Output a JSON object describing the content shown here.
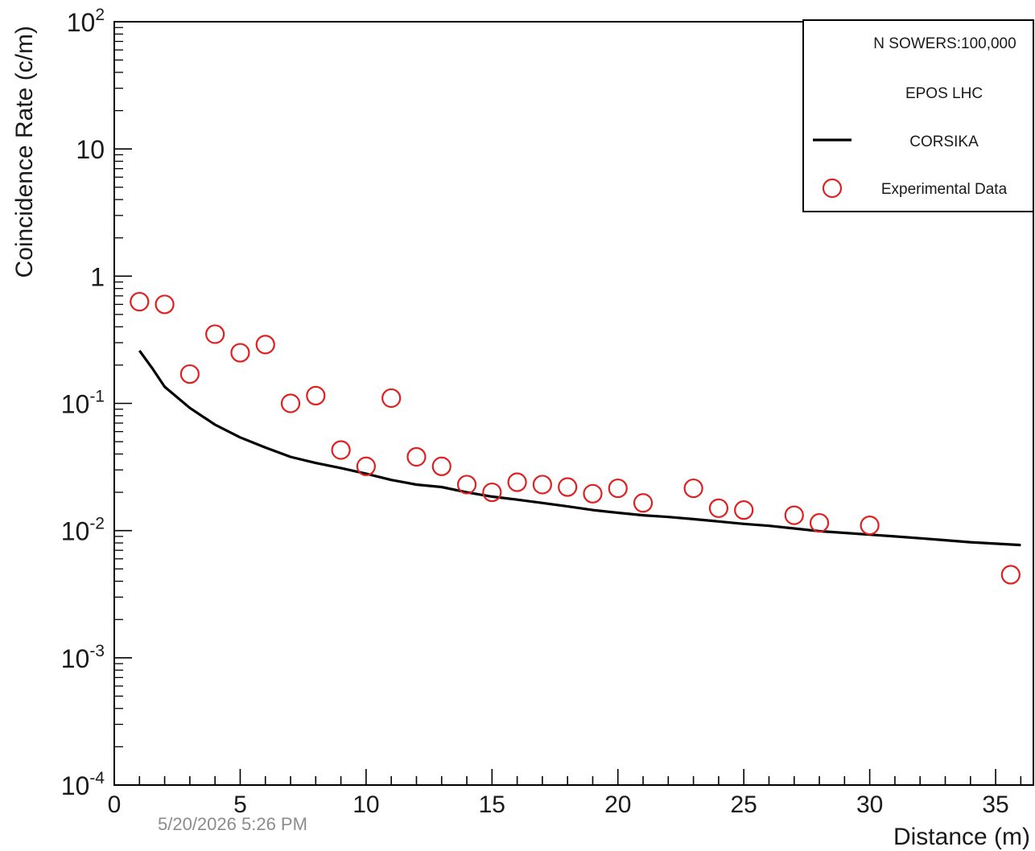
{
  "chart_data": {
    "type": "scatter",
    "title": "",
    "xlabel": "Distance (m)",
    "ylabel": "Coincidence Rate (c/m)",
    "xlim": [
      0,
      36.5
    ],
    "ylim": [
      0.0001,
      100
    ],
    "yscale": "log",
    "x_tick_labels": [
      "0",
      "5",
      "10",
      "15",
      "20",
      "25",
      "30",
      "35"
    ],
    "x_tick_values": [
      0,
      5,
      10,
      15,
      20,
      25,
      30,
      35
    ],
    "y_tick_values": [
      0.0001,
      0.001,
      0.01,
      0.1,
      1,
      10,
      100
    ],
    "y_tick_labels": [
      {
        "base": "10",
        "exp": "-4"
      },
      {
        "base": "10",
        "exp": "-3"
      },
      {
        "base": "10",
        "exp": "-2"
      },
      {
        "base": "10",
        "exp": "-1"
      },
      {
        "base": "1",
        "exp": ""
      },
      {
        "base": "10",
        "exp": ""
      },
      {
        "base": "10",
        "exp": "2"
      }
    ],
    "grid": false,
    "legend_position": "top-right",
    "legend": {
      "notes": [
        "N SOWERS:100,000",
        "EPOS LHC"
      ],
      "line_label": "CORSIKA",
      "marker_label": "Experimental Data"
    },
    "series": [
      {
        "name": "CORSIKA",
        "kind": "line",
        "color": "#000000",
        "x": [
          1,
          1.5,
          2,
          3,
          4,
          5,
          6,
          7,
          8,
          9,
          10,
          11,
          12,
          13,
          14,
          15,
          16,
          17,
          18,
          19,
          20,
          21,
          22,
          23,
          24,
          25,
          26,
          27,
          28,
          29,
          30,
          31,
          32,
          33,
          34,
          35,
          36
        ],
        "y": [
          0.26,
          0.19,
          0.135,
          0.092,
          0.068,
          0.054,
          0.045,
          0.038,
          0.034,
          0.031,
          0.028,
          0.025,
          0.023,
          0.022,
          0.02,
          0.0185,
          0.0175,
          0.0165,
          0.0155,
          0.0145,
          0.0138,
          0.0132,
          0.0128,
          0.0123,
          0.0118,
          0.0113,
          0.0109,
          0.0104,
          0.0099,
          0.0096,
          0.0093,
          0.009,
          0.0087,
          0.0084,
          0.0081,
          0.0079,
          0.0077
        ]
      },
      {
        "name": "Experimental Data",
        "kind": "marker",
        "color": "#e02020",
        "x": [
          1,
          2,
          3,
          4,
          5,
          6,
          7,
          8,
          9,
          10,
          11,
          12,
          13,
          14,
          15,
          16,
          17,
          18,
          19,
          20,
          21,
          23,
          24,
          25,
          27,
          28,
          30,
          35.6
        ],
        "y": [
          0.63,
          0.6,
          0.17,
          0.35,
          0.25,
          0.29,
          0.1,
          0.115,
          0.043,
          0.032,
          0.11,
          0.038,
          0.032,
          0.023,
          0.02,
          0.024,
          0.023,
          0.022,
          0.0195,
          0.0215,
          0.0165,
          0.0215,
          0.015,
          0.0145,
          0.0132,
          0.0115,
          0.011,
          0.0045
        ]
      }
    ]
  },
  "footer": {
    "timestamp": "5/20/2026 5:26 PM"
  }
}
